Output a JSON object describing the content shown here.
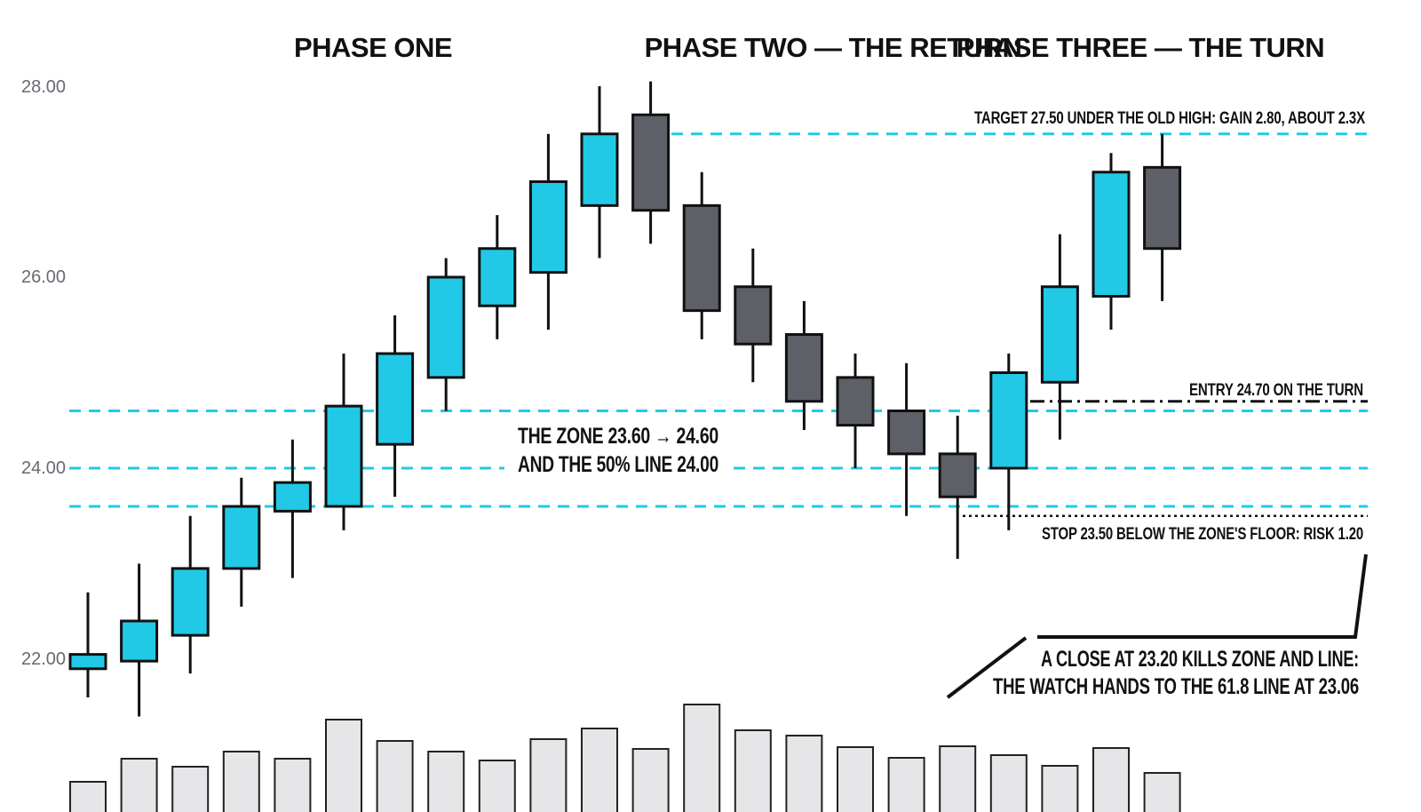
{
  "chart_data": {
    "type": "candlestick",
    "title": "",
    "xlabel": "",
    "ylabel": "",
    "ylim": [
      21.0,
      28.5
    ],
    "yticks": [
      "22.00",
      "24.00",
      "26.00",
      "28.00"
    ],
    "phases": [
      "PHASE ONE",
      "PHASE TWO — THE RETURN",
      "PHASE THREE — THE TURN"
    ],
    "colors": {
      "up": "#22c9e6",
      "down": "#5e6068",
      "volume": "#e6e6e8",
      "level_line": "#22c9e6",
      "outline": "#111111",
      "tick_text": "#666a73"
    },
    "candles": [
      {
        "o": 21.9,
        "h": 22.7,
        "l": 21.6,
        "c": 22.05
      },
      {
        "o": 21.98,
        "h": 23.0,
        "l": 21.4,
        "c": 22.4
      },
      {
        "o": 22.25,
        "h": 23.5,
        "l": 21.85,
        "c": 22.95
      },
      {
        "o": 22.95,
        "h": 23.9,
        "l": 22.55,
        "c": 23.6
      },
      {
        "o": 23.55,
        "h": 24.3,
        "l": 22.85,
        "c": 23.85
      },
      {
        "o": 23.6,
        "h": 25.2,
        "l": 23.35,
        "c": 24.65
      },
      {
        "o": 24.25,
        "h": 25.6,
        "l": 23.7,
        "c": 25.2
      },
      {
        "o": 24.95,
        "h": 26.2,
        "l": 24.6,
        "c": 26.0
      },
      {
        "o": 25.7,
        "h": 26.65,
        "l": 25.35,
        "c": 26.3
      },
      {
        "o": 26.05,
        "h": 27.5,
        "l": 25.45,
        "c": 27.0
      },
      {
        "o": 26.75,
        "h": 28.0,
        "l": 26.2,
        "c": 27.5
      },
      {
        "o": 27.7,
        "h": 28.05,
        "l": 26.35,
        "c": 26.7
      },
      {
        "o": 26.75,
        "h": 27.1,
        "l": 25.35,
        "c": 25.65
      },
      {
        "o": 25.9,
        "h": 26.3,
        "l": 24.9,
        "c": 25.3
      },
      {
        "o": 25.4,
        "h": 25.75,
        "l": 24.4,
        "c": 24.7
      },
      {
        "o": 24.95,
        "h": 25.2,
        "l": 24.0,
        "c": 24.45
      },
      {
        "o": 24.6,
        "h": 25.1,
        "l": 23.5,
        "c": 24.15
      },
      {
        "o": 24.15,
        "h": 24.55,
        "l": 23.05,
        "c": 23.7
      },
      {
        "o": 24.0,
        "h": 25.2,
        "l": 23.35,
        "c": 25.0
      },
      {
        "o": 24.9,
        "h": 26.45,
        "l": 24.3,
        "c": 25.9
      },
      {
        "o": 25.8,
        "h": 27.3,
        "l": 25.45,
        "c": 27.1
      },
      {
        "o": 27.15,
        "h": 27.5,
        "l": 25.75,
        "c": 26.3
      }
    ],
    "volume": [
      34,
      60,
      51,
      68,
      60,
      104,
      80,
      68,
      58,
      82,
      94,
      71,
      121,
      92,
      86,
      73,
      61,
      74,
      64,
      52,
      72,
      44
    ],
    "levels": {
      "zone_top": 24.6,
      "fifty_line": 24.0,
      "zone_floor": 23.6,
      "target": 27.5,
      "entry": 24.7,
      "stop": 23.5
    },
    "annotations": {
      "target": "TARGET 27.50 UNDER THE OLD HIGH: GAIN 2.80, ABOUT 2.3X",
      "entry": "ENTRY 24.70 ON THE TURN",
      "zone_line1": "THE ZONE 23.60 → 24.60",
      "zone_line2": "AND THE 50% LINE 24.00",
      "stop": "STOP 23.50 BELOW THE ZONE'S FLOOR: RISK 1.20",
      "kill_line1": "A CLOSE AT 23.20 KILLS ZONE AND LINE:",
      "kill_line2": "THE WATCH HANDS TO THE 61.8 LINE AT 23.06"
    }
  }
}
